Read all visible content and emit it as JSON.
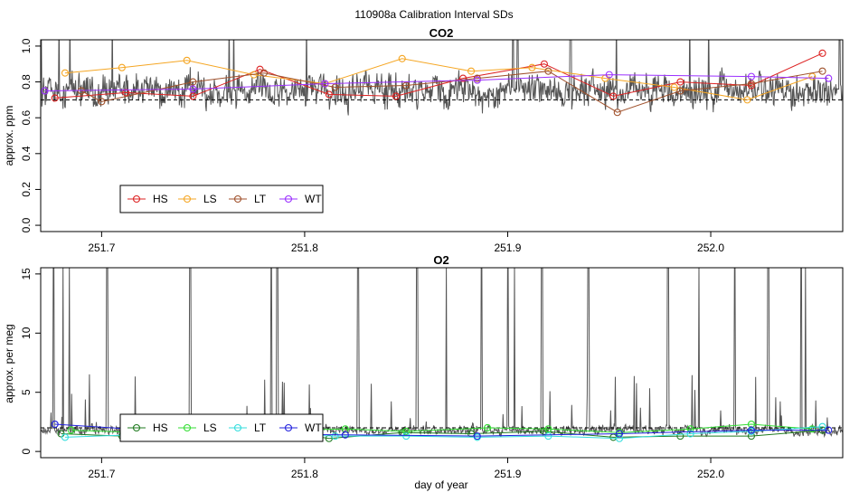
{
  "page": {
    "title": "110908a   Calibration Interval SDs"
  },
  "chart_data": [
    {
      "type": "line",
      "title": "CO2",
      "xlabel": "",
      "ylabel": "approx. ppm",
      "xlim": [
        251.67,
        252.065
      ],
      "ylim": [
        0.0,
        1.0
      ],
      "x_ticks": [
        "251.7",
        "251.8",
        "251.9",
        "252.0"
      ],
      "x_tick_values": [
        251.7,
        251.8,
        251.9,
        252.0
      ],
      "y_ticks": [
        "0.0",
        "0.2",
        "0.4",
        "0.6",
        "0.8",
        "1.0"
      ],
      "y_tick_values": [
        0.0,
        0.2,
        0.4,
        0.6,
        0.8,
        1.0
      ],
      "reference_line": {
        "y": 0.7,
        "style": "dashed",
        "color": "#000000"
      },
      "background_trace": {
        "color": "#555555",
        "x_start": 251.67,
        "x_end": 252.065,
        "base": 0.75,
        "spread": 0.12,
        "spike_height": 1.2
      },
      "legend": {
        "placement": "bottom-left",
        "entries": [
          "HS",
          "LS",
          "LT",
          "WT"
        ]
      },
      "series": [
        {
          "name": "HS",
          "color": "#dd2222",
          "x": [
            251.677,
            251.712,
            251.745,
            251.778,
            251.812,
            251.845,
            251.878,
            251.918,
            251.952,
            251.985,
            252.02,
            252.055
          ],
          "y": [
            0.71,
            0.74,
            0.72,
            0.87,
            0.73,
            0.72,
            0.82,
            0.9,
            0.72,
            0.8,
            0.78,
            0.96
          ]
        },
        {
          "name": "LS",
          "color": "#f5a623",
          "x": [
            251.682,
            251.71,
            251.742,
            251.775,
            251.81,
            251.848,
            251.882,
            251.912,
            251.948,
            251.982,
            252.018,
            252.05
          ],
          "y": [
            0.85,
            0.88,
            0.92,
            0.84,
            0.79,
            0.93,
            0.86,
            0.88,
            0.82,
            0.77,
            0.7,
            0.83
          ]
        },
        {
          "name": "LT",
          "color": "#a0522d",
          "x": [
            251.69,
            251.7,
            251.745,
            251.78,
            251.815,
            251.85,
            251.885,
            251.92,
            251.954,
            251.985,
            252.02,
            252.055
          ],
          "y": [
            0.75,
            0.69,
            0.8,
            0.85,
            0.77,
            0.78,
            0.82,
            0.86,
            0.63,
            0.75,
            0.79,
            0.86
          ]
        },
        {
          "name": "WT",
          "color": "#9b30ff",
          "x": [
            251.672,
            251.745,
            251.81,
            251.885,
            251.95,
            252.02,
            252.058
          ],
          "y": [
            0.75,
            0.76,
            0.79,
            0.81,
            0.84,
            0.83,
            0.82
          ]
        }
      ]
    },
    {
      "type": "line",
      "title": "O2",
      "xlabel": "day of year",
      "ylabel": "approx. per meg",
      "xlim": [
        251.67,
        252.065
      ],
      "ylim": [
        0,
        15
      ],
      "x_ticks": [
        "251.7",
        "251.8",
        "251.9",
        "252.0"
      ],
      "x_tick_values": [
        251.7,
        251.8,
        251.9,
        252.0
      ],
      "y_ticks": [
        "0",
        "5",
        "10",
        "15"
      ],
      "y_tick_values": [
        0,
        5,
        10,
        15
      ],
      "reference_line": {
        "y": 2.0,
        "style": "dashed",
        "color": "#000000"
      },
      "background_trace": {
        "color": "#555555",
        "x_start": 251.67,
        "x_end": 252.065,
        "base": 1.8,
        "spread": 0.5,
        "spike_height": 16
      },
      "legend": {
        "placement": "bottom-left",
        "entries": [
          "HS",
          "LS",
          "LT",
          "WT"
        ]
      },
      "series": [
        {
          "name": "HS",
          "color": "#1f7a1f",
          "x": [
            251.68,
            251.71,
            251.745,
            251.78,
            251.812,
            251.848,
            251.882,
            251.918,
            251.952,
            251.985,
            252.02,
            252.055
          ],
          "y": [
            1.5,
            1.3,
            1.6,
            1.9,
            1.1,
            1.6,
            1.5,
            1.7,
            1.2,
            1.3,
            1.3,
            1.8
          ]
        },
        {
          "name": "LS",
          "color": "#33dd33",
          "x": [
            251.685,
            251.72,
            251.745,
            251.79,
            251.82,
            251.85,
            251.89,
            251.92,
            251.955,
            251.99,
            252.02,
            252.05
          ],
          "y": [
            1.8,
            1.6,
            2.7,
            1.8,
            1.9,
            1.7,
            2.0,
            1.9,
            1.6,
            1.9,
            2.3,
            1.9
          ]
        },
        {
          "name": "LT",
          "color": "#33dddd",
          "x": [
            251.682,
            251.715,
            251.75,
            251.78,
            251.815,
            251.85,
            251.885,
            251.92,
            251.955,
            251.99,
            252.02,
            252.055
          ],
          "y": [
            1.2,
            1.4,
            1.4,
            1.5,
            1.3,
            1.3,
            1.2,
            1.3,
            1.1,
            1.5,
            1.7,
            2.1
          ]
        },
        {
          "name": "WT",
          "color": "#2222dd",
          "x": [
            251.677,
            251.75,
            251.82,
            251.885,
            251.955,
            252.02,
            252.058
          ],
          "y": [
            2.3,
            1.5,
            1.4,
            1.3,
            1.5,
            1.8,
            1.8
          ]
        }
      ]
    }
  ]
}
